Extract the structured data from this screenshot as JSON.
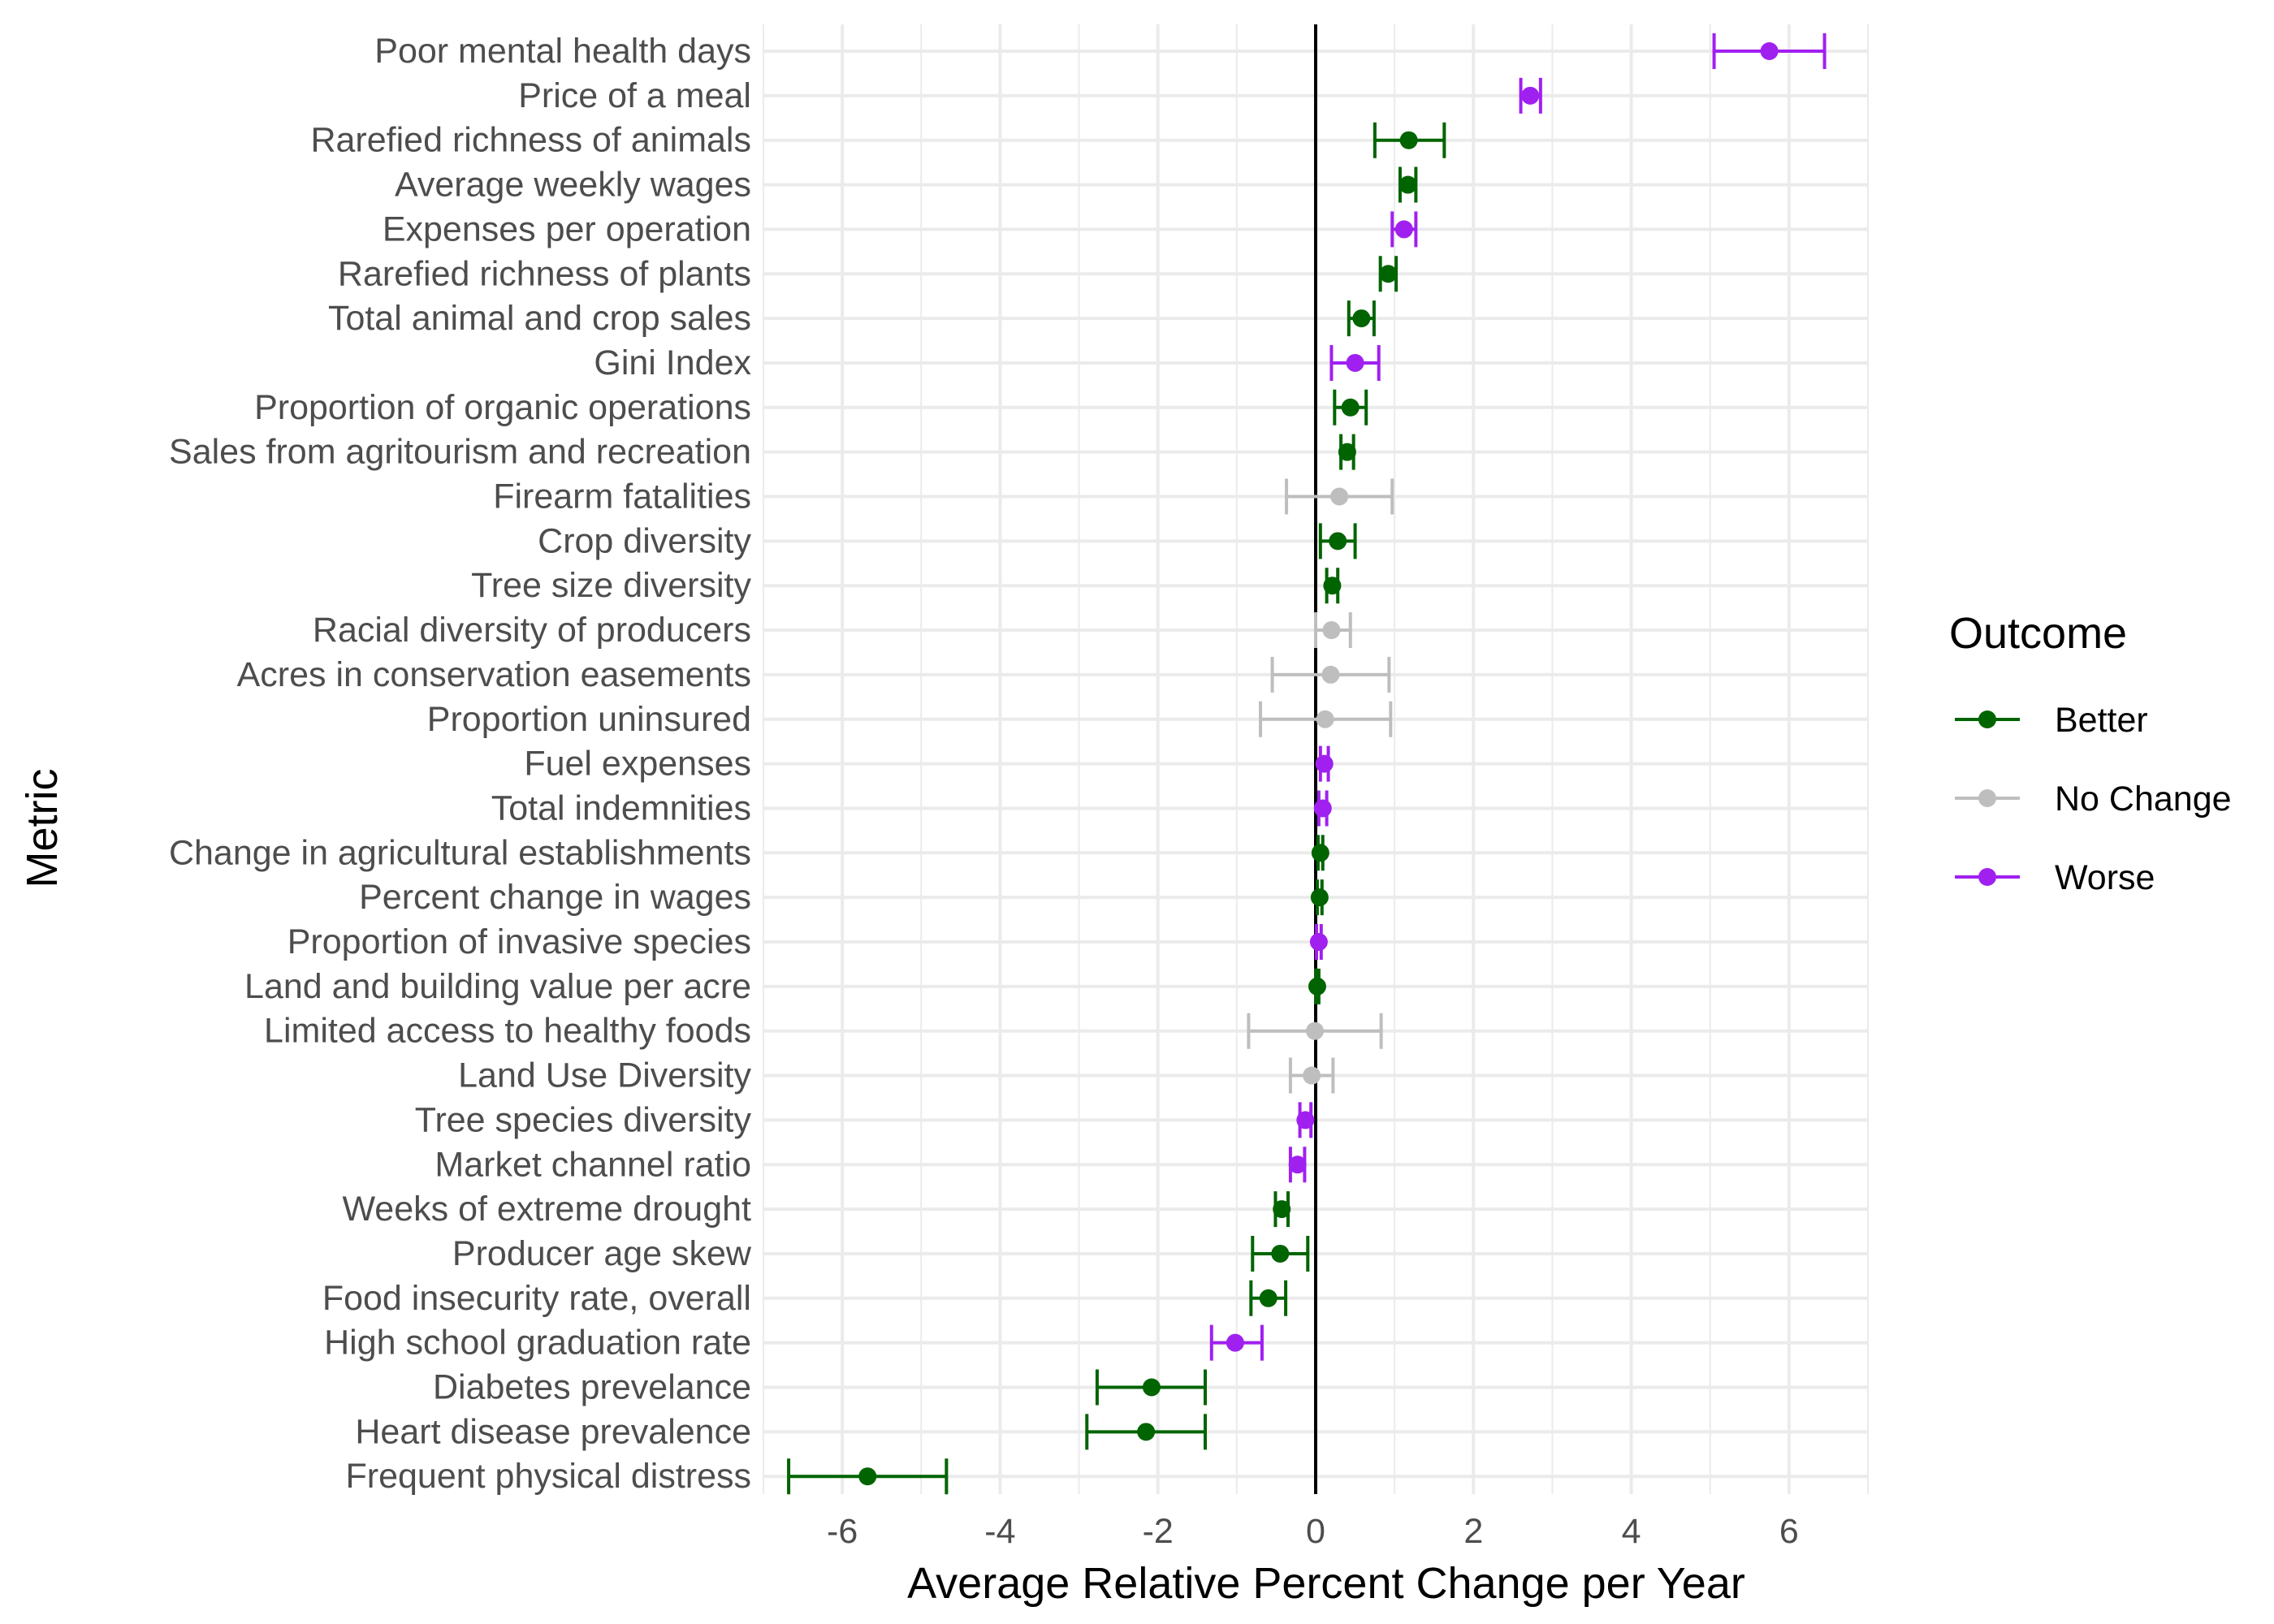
{
  "chart_data": {
    "type": "scatter",
    "xlabel": "Average Relative Percent Change per Year",
    "ylabel": "Metric",
    "xlim": [
      -7,
      7
    ],
    "x_ticks": [
      -6,
      -4,
      -2,
      0,
      2,
      4,
      6
    ],
    "x_tick_labels": [
      "-6",
      "-4",
      "-2",
      "0",
      "2",
      "4",
      "6"
    ],
    "grid": true,
    "reference_line_x": 0,
    "legend": {
      "title": "Outcome",
      "position": "right",
      "entries": [
        {
          "label": "Better",
          "color": "#006400"
        },
        {
          "label": "No Change",
          "color": "#BEBEBE"
        },
        {
          "label": "Worse",
          "color": "#A020F0"
        }
      ]
    },
    "points": [
      {
        "metric": "Poor mental health days",
        "value": 5.75,
        "low": 5.05,
        "high": 6.45,
        "outcome": "Worse"
      },
      {
        "metric": "Price of a meal",
        "value": 2.72,
        "low": 2.6,
        "high": 2.85,
        "outcome": "Worse"
      },
      {
        "metric": "Rarefied richness of animals",
        "value": 1.18,
        "low": 0.75,
        "high": 1.63,
        "outcome": "Better"
      },
      {
        "metric": "Average weekly wages",
        "value": 1.17,
        "low": 1.07,
        "high": 1.27,
        "outcome": "Better"
      },
      {
        "metric": "Expenses per operation",
        "value": 1.12,
        "low": 0.97,
        "high": 1.27,
        "outcome": "Worse"
      },
      {
        "metric": "Rarefied richness of plants",
        "value": 0.92,
        "low": 0.82,
        "high": 1.02,
        "outcome": "Better"
      },
      {
        "metric": "Total animal and crop sales",
        "value": 0.58,
        "low": 0.42,
        "high": 0.74,
        "outcome": "Better"
      },
      {
        "metric": "Gini Index",
        "value": 0.5,
        "low": 0.2,
        "high": 0.8,
        "outcome": "Worse"
      },
      {
        "metric": "Proportion of organic operations",
        "value": 0.44,
        "low": 0.24,
        "high": 0.64,
        "outcome": "Better"
      },
      {
        "metric": "Sales from agritourism and recreation",
        "value": 0.4,
        "low": 0.32,
        "high": 0.48,
        "outcome": "Better"
      },
      {
        "metric": "Firearm fatalities",
        "value": 0.3,
        "low": -0.37,
        "high": 0.97,
        "outcome": "No Change"
      },
      {
        "metric": "Crop diversity",
        "value": 0.28,
        "low": 0.06,
        "high": 0.5,
        "outcome": "Better"
      },
      {
        "metric": "Tree size diversity",
        "value": 0.21,
        "low": 0.14,
        "high": 0.28,
        "outcome": "Better"
      },
      {
        "metric": "Racial diversity of producers",
        "value": 0.2,
        "low": 0.0,
        "high": 0.44,
        "outcome": "No Change"
      },
      {
        "metric": "Acres in conservation easements",
        "value": 0.19,
        "low": -0.55,
        "high": 0.93,
        "outcome": "No Change"
      },
      {
        "metric": "Proportion uninsured",
        "value": 0.12,
        "low": -0.7,
        "high": 0.95,
        "outcome": "No Change"
      },
      {
        "metric": "Fuel expenses",
        "value": 0.11,
        "low": 0.06,
        "high": 0.16,
        "outcome": "Worse"
      },
      {
        "metric": "Total indemnities",
        "value": 0.09,
        "low": 0.04,
        "high": 0.14,
        "outcome": "Worse"
      },
      {
        "metric": "Change in agricultural establishments",
        "value": 0.06,
        "low": 0.03,
        "high": 0.09,
        "outcome": "Better"
      },
      {
        "metric": "Percent change in wages",
        "value": 0.05,
        "low": 0.02,
        "high": 0.08,
        "outcome": "Better"
      },
      {
        "metric": "Proportion of invasive species",
        "value": 0.04,
        "low": 0.01,
        "high": 0.07,
        "outcome": "Worse"
      },
      {
        "metric": "Land and building value per acre",
        "value": 0.02,
        "low": 0.0,
        "high": 0.04,
        "outcome": "Better"
      },
      {
        "metric": "Limited access to healthy foods",
        "value": -0.01,
        "low": -0.85,
        "high": 0.83,
        "outcome": "No Change"
      },
      {
        "metric": "Land Use Diversity",
        "value": -0.05,
        "low": -0.32,
        "high": 0.22,
        "outcome": "No Change"
      },
      {
        "metric": "Tree species diversity",
        "value": -0.13,
        "low": -0.2,
        "high": -0.06,
        "outcome": "Worse"
      },
      {
        "metric": "Market channel ratio",
        "value": -0.23,
        "low": -0.32,
        "high": -0.14,
        "outcome": "Worse"
      },
      {
        "metric": "Weeks of extreme drought",
        "value": -0.43,
        "low": -0.51,
        "high": -0.35,
        "outcome": "Better"
      },
      {
        "metric": "Producer age skew",
        "value": -0.45,
        "low": -0.8,
        "high": -0.1,
        "outcome": "Better"
      },
      {
        "metric": "Food insecurity rate, overall",
        "value": -0.6,
        "low": -0.82,
        "high": -0.38,
        "outcome": "Better"
      },
      {
        "metric": "High school graduation rate",
        "value": -1.02,
        "low": -1.32,
        "high": -0.68,
        "outcome": "Worse"
      },
      {
        "metric": "Diabetes prevelance",
        "value": -2.08,
        "low": -2.77,
        "high": -1.4,
        "outcome": "Better"
      },
      {
        "metric": "Heart disease prevalence",
        "value": -2.15,
        "low": -2.9,
        "high": -1.4,
        "outcome": "Better"
      },
      {
        "metric": "Frequent physical distress",
        "value": -5.68,
        "low": -6.68,
        "high": -4.68,
        "outcome": "Better"
      }
    ]
  }
}
